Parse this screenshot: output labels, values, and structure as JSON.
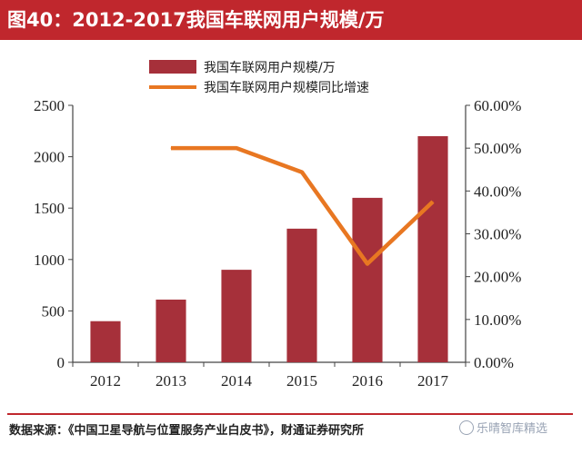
{
  "header": {
    "title": "图40：2012-2017我国车联网用户规模/万"
  },
  "chart_data": {
    "type": "bar+line",
    "categories": [
      "2012",
      "2013",
      "2014",
      "2015",
      "2016",
      "2017"
    ],
    "series": [
      {
        "name": "我国车联网用户规模/万",
        "kind": "bar",
        "axis": "left",
        "color": "#a6303a",
        "values": [
          400,
          610,
          900,
          1300,
          1600,
          2200
        ]
      },
      {
        "name": "我国车联网用户规模同比增速",
        "kind": "line",
        "axis": "right",
        "color": "#e87722",
        "values": [
          null,
          50.0,
          50.0,
          44.4,
          23.0,
          37.5
        ]
      }
    ],
    "y_left": {
      "min": 0,
      "max": 2500,
      "ticks": [
        0,
        500,
        1000,
        1500,
        2000,
        2500
      ]
    },
    "y_right": {
      "min": 0,
      "max": 60,
      "ticks": [
        0,
        10,
        20,
        30,
        40,
        50,
        60
      ],
      "tick_labels": [
        "0.00%",
        "10.00%",
        "20.00%",
        "30.00%",
        "40.00%",
        "50.00%",
        "60.00%"
      ]
    },
    "legend_position": "top-center"
  },
  "footer": {
    "source": "数据来源：《中国卫星导航与位置服务产业白皮书》，财通证券研究所"
  },
  "watermark": {
    "text": "乐晴智库精选"
  }
}
